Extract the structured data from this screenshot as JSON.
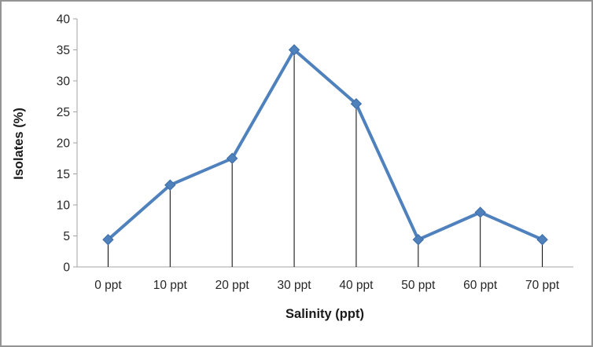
{
  "chart_data": {
    "type": "line",
    "title": "",
    "categories": [
      "0 ppt",
      "10 ppt",
      "20 ppt",
      "30 ppt",
      "40 ppt",
      "50 ppt",
      "60 ppt",
      "70 ppt"
    ],
    "series": [
      {
        "name": "Isolates (%)",
        "values": [
          4.4,
          13.2,
          17.5,
          35,
          26.3,
          4.4,
          8.8,
          4.4
        ]
      }
    ],
    "xlabel": "Salinity (ppt)",
    "ylabel": "Isolates (%)",
    "ylim": [
      0,
      40
    ],
    "yticks": [
      0,
      5,
      10,
      15,
      20,
      25,
      30,
      35,
      40
    ],
    "grid": false,
    "legend_position": "none",
    "marker_shape": "diamond",
    "drop_lines": true,
    "colors": {
      "line": "#4F81BD",
      "marker": "#4F81BD",
      "marker_edge": "#3E6DA5",
      "drop_line": "#000000",
      "axis_line": "#A3A3A3",
      "tick_label": "#262626",
      "axis_title": "#1a1a1a",
      "frame_border": "#949494",
      "background": "#ffffff"
    }
  }
}
